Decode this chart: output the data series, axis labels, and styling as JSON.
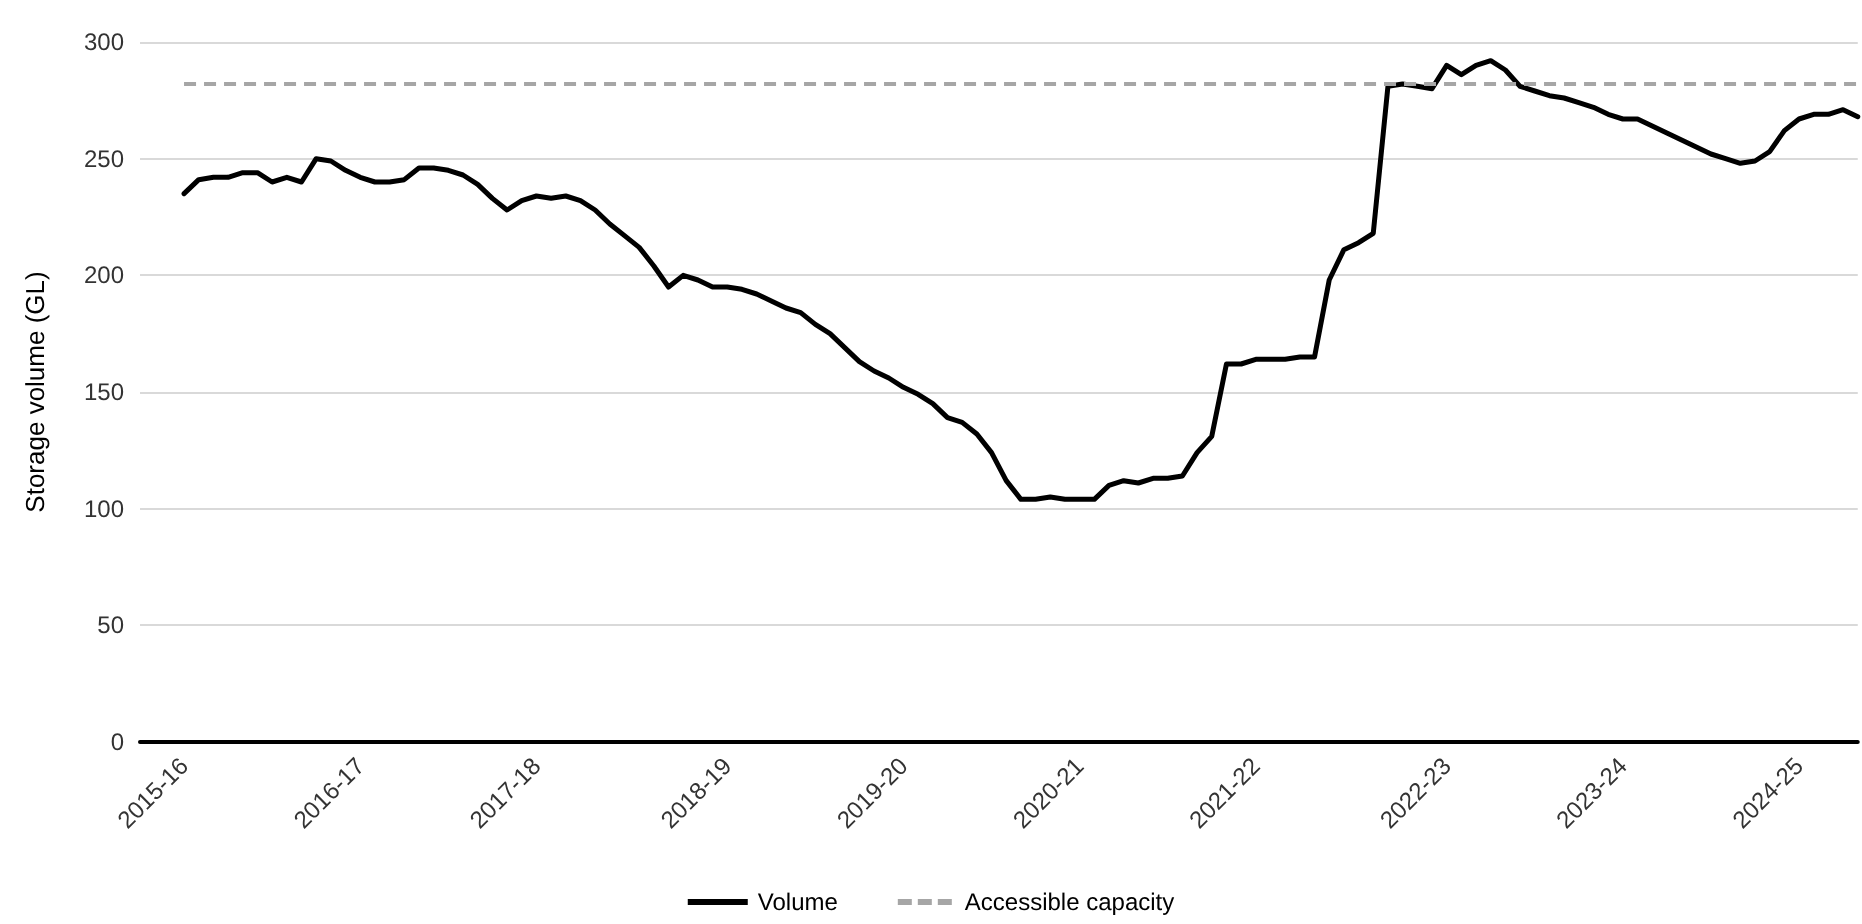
{
  "chart_data": {
    "type": "line",
    "ylabel": "Storage volume (GL)",
    "categories": [
      null,
      null,
      null,
      "2015-16",
      null,
      null,
      null,
      null,
      null,
      null,
      null,
      null,
      null,
      null,
      null,
      "2016-17",
      null,
      null,
      null,
      null,
      null,
      null,
      null,
      null,
      null,
      null,
      null,
      "2017-18",
      null,
      null,
      null,
      null,
      null,
      null,
      null,
      null,
      null,
      null,
      null,
      null,
      "2018-19",
      null,
      null,
      null,
      null,
      null,
      null,
      null,
      null,
      null,
      null,
      null,
      "2019-20",
      null,
      null,
      null,
      null,
      null,
      null,
      null,
      null,
      null,
      null,
      null,
      "2020-21",
      null,
      null,
      null,
      null,
      null,
      null,
      null,
      null,
      null,
      null,
      null,
      "2021-22",
      null,
      null,
      null,
      null,
      null,
      null,
      null,
      null,
      null,
      null,
      null,
      null,
      "2022-23",
      null,
      null,
      null,
      null,
      null,
      null,
      null,
      null,
      null,
      null,
      null,
      "2023-24",
      null,
      null,
      null,
      null,
      null,
      null,
      null,
      null,
      null,
      null,
      null,
      "2024-25",
      null,
      null,
      null,
      null
    ],
    "series": [
      {
        "name": "Volume",
        "color": "#000000",
        "values": [
          null,
          null,
          null,
          235,
          241,
          242,
          242,
          244,
          244,
          240,
          242,
          240,
          250,
          249,
          245,
          242,
          240,
          240,
          241,
          246,
          246,
          245,
          243,
          239,
          233,
          228,
          232,
          234,
          233,
          234,
          232,
          228,
          222,
          217,
          212,
          204,
          195,
          200,
          198,
          195,
          195,
          194,
          192,
          189,
          186,
          184,
          179,
          175,
          169,
          163,
          159,
          156,
          152,
          149,
          145,
          139,
          137,
          132,
          124,
          112,
          104,
          104,
          105,
          104,
          104,
          104,
          110,
          112,
          111,
          113,
          113,
          114,
          124,
          131,
          162,
          162,
          164,
          164,
          164,
          165,
          165,
          198,
          211,
          214,
          218,
          281,
          282,
          281,
          280,
          290,
          286,
          290,
          292,
          288,
          281,
          279,
          277,
          276,
          274,
          272,
          269,
          267,
          267,
          264,
          261,
          258,
          255,
          252,
          250,
          248,
          249,
          253,
          262,
          267,
          269,
          269,
          271,
          268
        ]
      }
    ],
    "ref_lines": [
      {
        "axis": "y",
        "value": 282,
        "label": "Accessible capacity",
        "color": "#a6a6a6",
        "line_style": "dashed"
      }
    ],
    "ylim": [
      0,
      300
    ],
    "yticks": [
      0,
      50,
      100,
      150,
      200,
      250,
      300
    ],
    "grid": "y",
    "legend": "bottom",
    "marker": "none",
    "line_style": "solid"
  }
}
